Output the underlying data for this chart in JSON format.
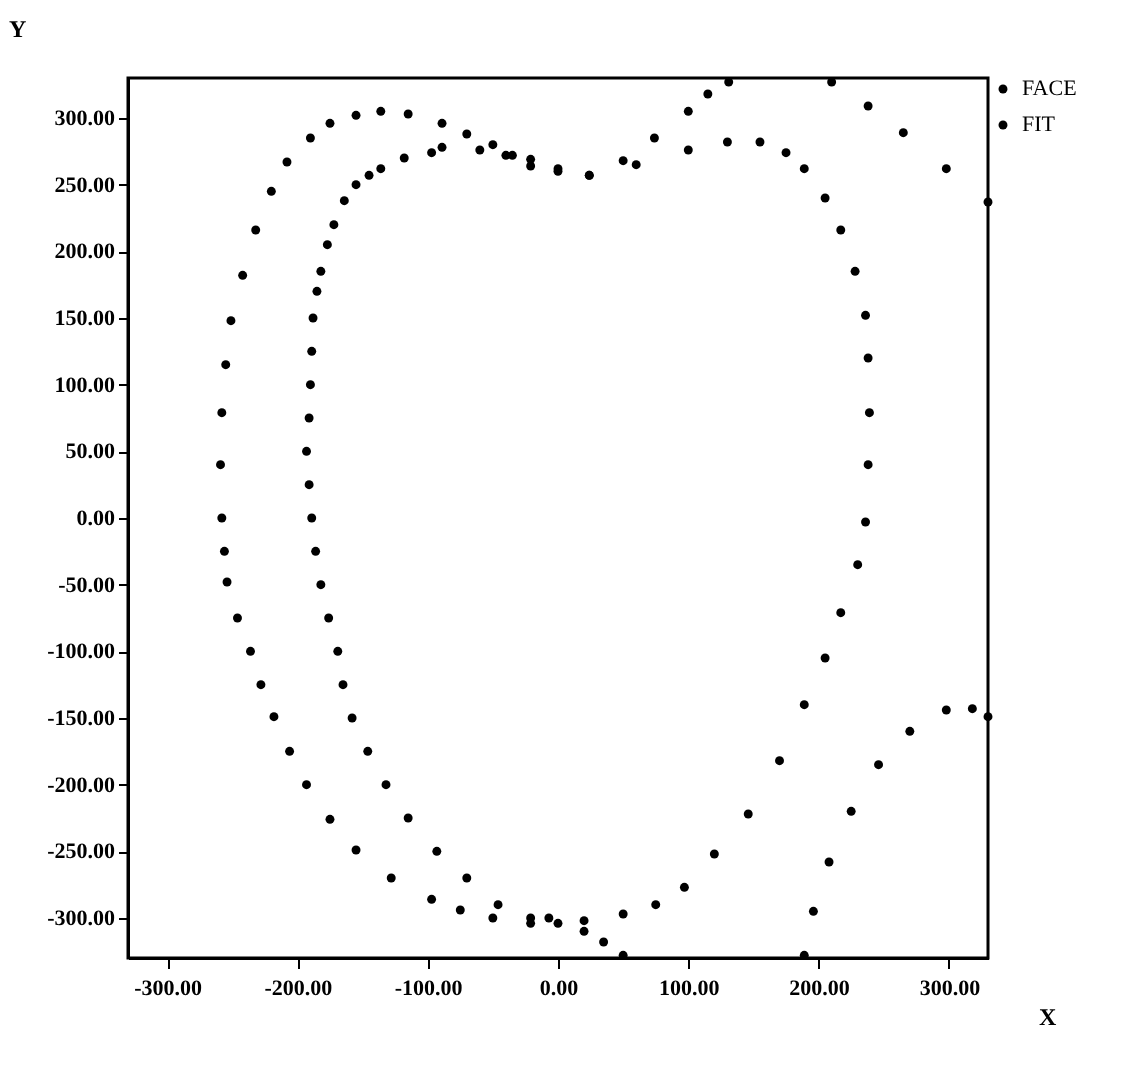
{
  "chart_data": {
    "type": "scatter",
    "xlabel": "X",
    "ylabel": "Y",
    "xlim": [
      -330,
      330
    ],
    "ylim": [
      -330,
      330
    ],
    "xticks": [
      {
        "value": -300,
        "label": "-300.00"
      },
      {
        "value": -200,
        "label": "-200.00"
      },
      {
        "value": -100,
        "label": "-100.00"
      },
      {
        "value": 0,
        "label": "0.00"
      },
      {
        "value": 100,
        "label": "100.00"
      },
      {
        "value": 200,
        "label": "200.00"
      },
      {
        "value": 300,
        "label": "300.00"
      }
    ],
    "yticks": [
      {
        "value": -300,
        "label": "-300.00"
      },
      {
        "value": -250,
        "label": "-250.00"
      },
      {
        "value": -200,
        "label": "-200.00"
      },
      {
        "value": -150,
        "label": "-150.00"
      },
      {
        "value": -100,
        "label": "-100.00"
      },
      {
        "value": -50,
        "label": "-50.00"
      },
      {
        "value": 0,
        "label": "0.00"
      },
      {
        "value": 50,
        "label": "50.00"
      },
      {
        "value": 100,
        "label": "100.00"
      },
      {
        "value": 150,
        "label": "150.00"
      },
      {
        "value": 200,
        "label": "200.00"
      },
      {
        "value": 250,
        "label": "250.00"
      },
      {
        "value": 300,
        "label": "300.00"
      }
    ],
    "grid": false,
    "legend": "top right",
    "marker": "circle",
    "series": [
      {
        "name": "FACE",
        "color": "#000000",
        "x": [
          24,
          60,
          100,
          130,
          155,
          175,
          189,
          205,
          217,
          228,
          236,
          238,
          239,
          238,
          236,
          230,
          217,
          205,
          189,
          170,
          146,
          120,
          97,
          75,
          50,
          20,
          -7,
          -21,
          -46,
          -70,
          -93,
          -115,
          -132,
          -146,
          -158,
          -165,
          -169,
          -176,
          -182,
          -186,
          -189,
          -191,
          -193,
          -191,
          -190,
          -189,
          -188,
          -185,
          -182,
          -177,
          -172,
          -164,
          -155,
          -145,
          -136,
          -118,
          -97,
          -89,
          -60,
          -40,
          -21,
          0
        ],
        "values": [
          257,
          265,
          276,
          282,
          282,
          274,
          262,
          240,
          216,
          185,
          152,
          120,
          79,
          40,
          -3,
          -35,
          -71,
          -105,
          -140,
          -182,
          -222,
          -252,
          -277,
          -290,
          -297,
          -302,
          -300,
          -304,
          -290,
          -270,
          -250,
          -225,
          -200,
          -175,
          -150,
          -125,
          -100,
          -75,
          -50,
          -25,
          0,
          25,
          50,
          75,
          100,
          125,
          150,
          170,
          185,
          205,
          220,
          238,
          250,
          257,
          262,
          270,
          274,
          278,
          276,
          272,
          269,
          262
        ]
      },
      {
        "name": "FIT",
        "color": "#000000",
        "x": [
          -136,
          -155,
          -175,
          -190,
          -208,
          -220,
          -232,
          -242,
          -251,
          -255,
          -258,
          -259,
          -258,
          -256,
          -254,
          -246,
          -236,
          -228,
          -218,
          -206,
          -193,
          -175,
          -155,
          -128,
          -97,
          -75,
          -50,
          -21,
          0,
          20,
          35,
          50,
          -115,
          -89,
          -70,
          -50,
          -35,
          -21,
          0,
          24,
          50,
          74,
          100,
          115,
          131,
          210,
          238,
          265,
          298,
          330,
          189,
          196,
          208,
          225,
          246,
          270,
          298,
          318,
          330
        ],
        "values": [
          305,
          302,
          296,
          285,
          267,
          245,
          216,
          182,
          148,
          115,
          79,
          40,
          0,
          -25,
          -48,
          -75,
          -100,
          -125,
          -149,
          -175,
          -200,
          -226,
          -249,
          -270,
          -286,
          -294,
          -300,
          -300,
          -304,
          -310,
          -318,
          -328,
          303,
          296,
          288,
          280,
          272,
          264,
          260,
          257,
          268,
          285,
          305,
          318,
          327,
          327,
          309,
          289,
          262,
          237,
          -328,
          -295,
          -258,
          -220,
          -185,
          -160,
          -144,
          -143,
          -149
        ]
      }
    ]
  }
}
